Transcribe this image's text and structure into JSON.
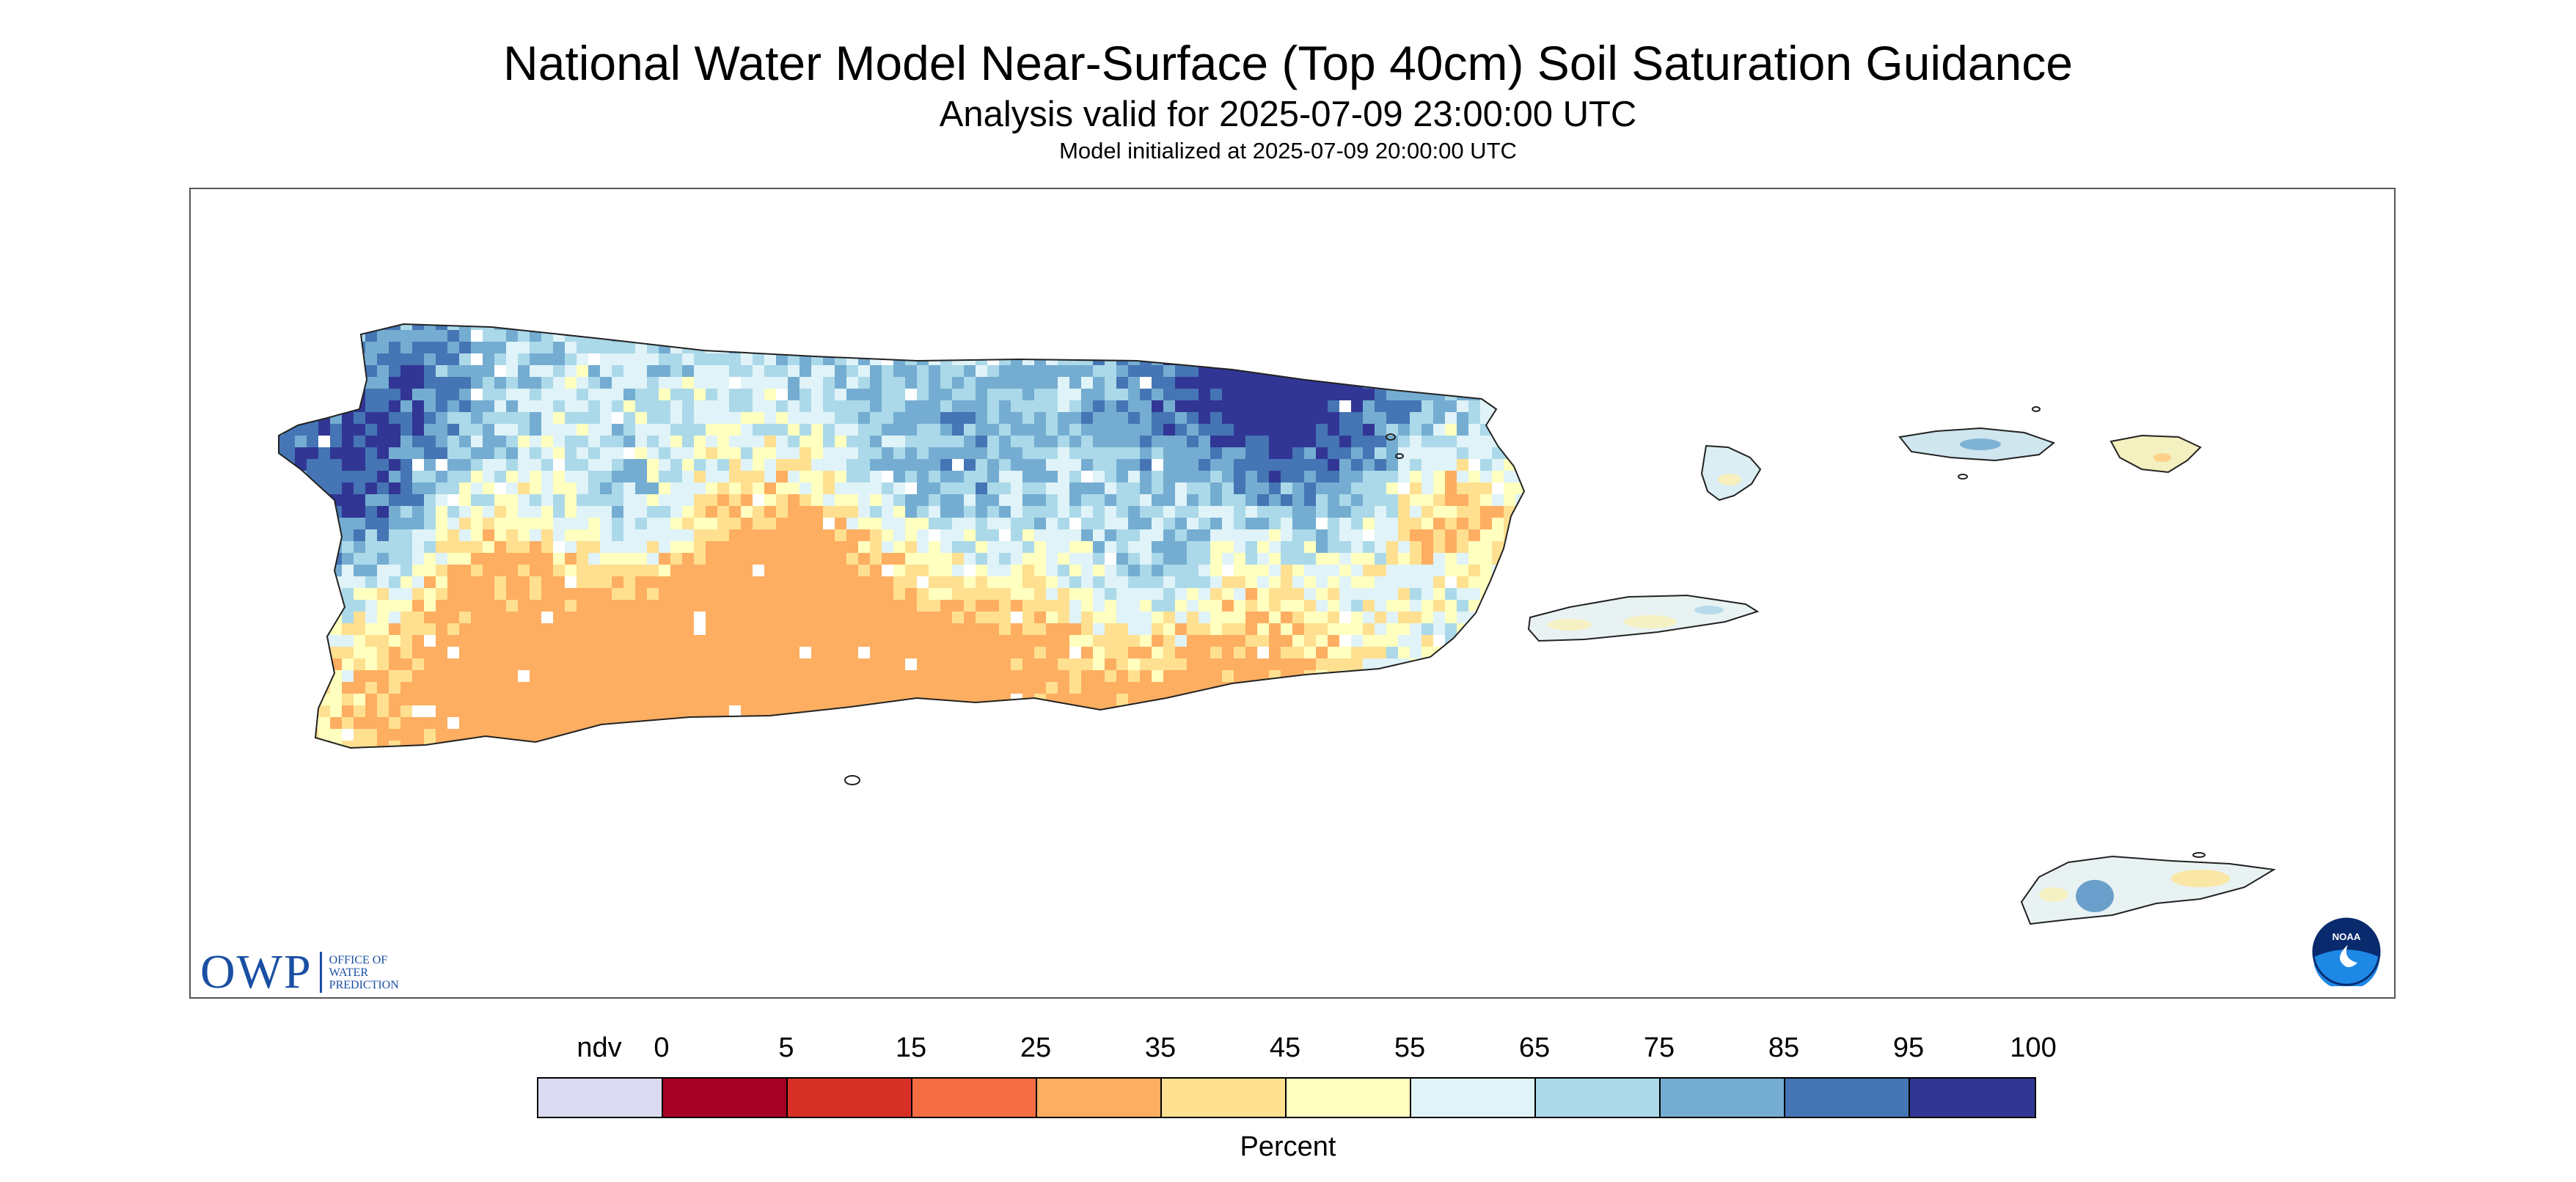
{
  "header": {
    "title": "National Water Model Near-Surface (Top 40cm) Soil Saturation Guidance",
    "subtitle": "Analysis valid for 2025-07-09 23:00:00 UTC",
    "init": "Model initialized at 2025-07-09 20:00:00 UTC"
  },
  "logos": {
    "owp_mark": "OWP",
    "owp_line1": "OFFICE OF",
    "owp_line2": "WATER",
    "owp_line3": "PREDICTION",
    "noaa_mark": "NOAA"
  },
  "legend": {
    "title": "Percent",
    "tick_labels": [
      "ndv",
      "0",
      "5",
      "15",
      "25",
      "35",
      "45",
      "55",
      "65",
      "75",
      "85",
      "95",
      "100"
    ],
    "colors": [
      "#dadaf0",
      "#a50026",
      "#d73027",
      "#f46d43",
      "#fdae61",
      "#fee090",
      "#ffffbf",
      "#e0f3f8",
      "#abd9e9",
      "#74add1",
      "#4575b4",
      "#313695"
    ]
  }
}
